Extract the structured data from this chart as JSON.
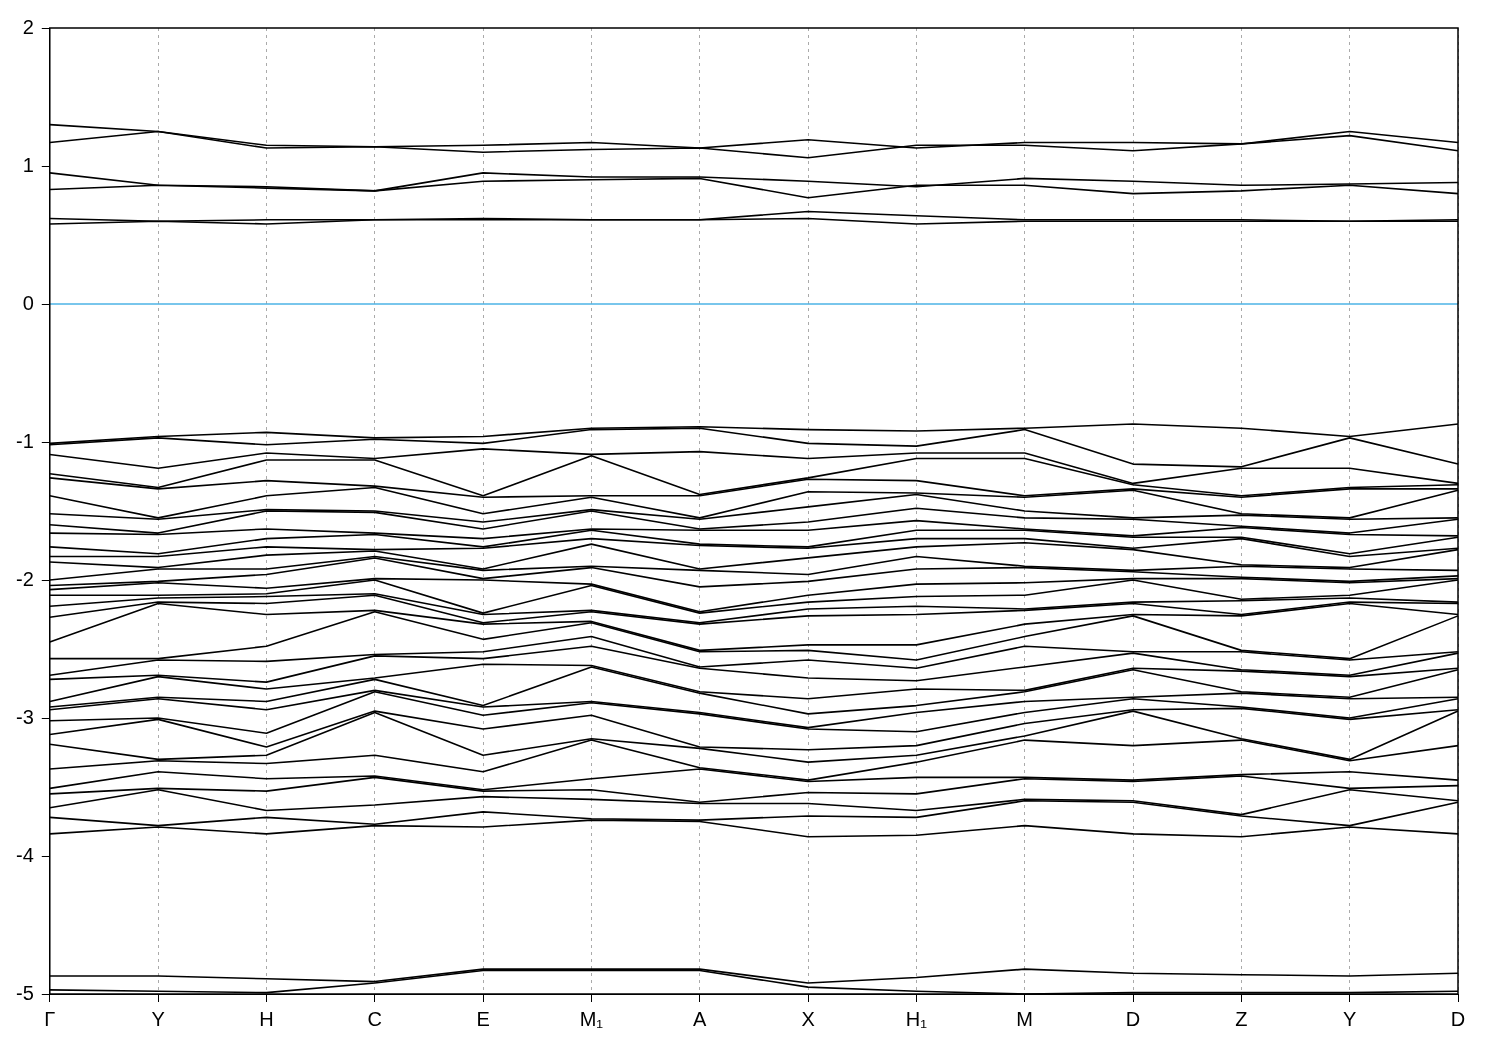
{
  "chart_data": {
    "type": "line",
    "categories": [
      "Γ",
      "Y",
      "H",
      "C",
      "E",
      "M₁",
      "A",
      "X",
      "H₁",
      "M",
      "D",
      "Z",
      "Y",
      "D"
    ],
    "ylim": [
      -5,
      2
    ],
    "yticks": [
      -5,
      -4,
      -3,
      -2,
      -1,
      0,
      1,
      2
    ],
    "grid": "x",
    "marker": "none",
    "line_style": "solid",
    "ref_lines": [
      {
        "axis": "y",
        "value": 0,
        "color": "#4db3e6"
      }
    ],
    "series": [
      {
        "color": "#000000",
        "values": [
          1.3,
          1.25,
          1.15,
          1.14,
          1.15,
          1.17,
          1.13,
          1.19,
          1.13,
          1.17,
          1.17,
          1.16,
          1.25,
          1.17
        ]
      },
      {
        "color": "#000000",
        "values": [
          1.17,
          1.25,
          1.13,
          1.14,
          1.1,
          1.12,
          1.13,
          1.06,
          1.15,
          1.15,
          1.11,
          1.16,
          1.22,
          1.11
        ]
      },
      {
        "color": "#000000",
        "values": [
          0.95,
          0.86,
          0.85,
          0.82,
          0.95,
          0.92,
          0.92,
          0.89,
          0.85,
          0.91,
          0.89,
          0.86,
          0.87,
          0.88
        ]
      },
      {
        "color": "#000000",
        "values": [
          0.83,
          0.86,
          0.84,
          0.82,
          0.89,
          0.9,
          0.91,
          0.77,
          0.86,
          0.86,
          0.8,
          0.82,
          0.86,
          0.8
        ]
      },
      {
        "color": "#000000",
        "values": [
          0.62,
          0.6,
          0.61,
          0.61,
          0.62,
          0.61,
          0.61,
          0.67,
          0.64,
          0.61,
          0.61,
          0.61,
          0.6,
          0.61
        ]
      },
      {
        "color": "#000000",
        "values": [
          0.58,
          0.6,
          0.58,
          0.61,
          0.61,
          0.61,
          0.61,
          0.62,
          0.58,
          0.6,
          0.6,
          0.6,
          0.6,
          0.6
        ]
      },
      {
        "color": "#000000",
        "values": [
          -1.01,
          -0.96,
          -0.93,
          -0.97,
          -0.96,
          -0.9,
          -0.89,
          -0.91,
          -0.92,
          -0.9,
          -0.87,
          -0.9,
          -0.96,
          -0.87
        ]
      },
      {
        "color": "#000000",
        "values": [
          -1.02,
          -0.97,
          -1.02,
          -0.98,
          -1.01,
          -0.91,
          -0.9,
          -1.01,
          -1.03,
          -0.91,
          -1.16,
          -1.18,
          -0.97,
          -1.16
        ]
      },
      {
        "color": "#000000",
        "values": [
          -1.09,
          -1.19,
          -1.08,
          -1.12,
          -1.05,
          -1.09,
          -1.07,
          -1.12,
          -1.08,
          -1.08,
          -1.3,
          -1.19,
          -1.19,
          -1.3
        ]
      },
      {
        "color": "#000000",
        "values": [
          -1.23,
          -1.33,
          -1.13,
          -1.13,
          -1.39,
          -1.1,
          -1.38,
          -1.26,
          -1.12,
          -1.12,
          -1.31,
          -1.39,
          -1.33,
          -1.31
        ]
      },
      {
        "color": "#000000",
        "values": [
          -1.26,
          -1.34,
          -1.28,
          -1.32,
          -1.4,
          -1.39,
          -1.39,
          -1.27,
          -1.28,
          -1.39,
          -1.34,
          -1.4,
          -1.34,
          -1.34
        ]
      },
      {
        "color": "#000000",
        "values": [
          -1.39,
          -1.55,
          -1.39,
          -1.33,
          -1.52,
          -1.4,
          -1.55,
          -1.36,
          -1.37,
          -1.4,
          -1.35,
          -1.52,
          -1.55,
          -1.35
        ]
      },
      {
        "color": "#000000",
        "values": [
          -1.52,
          -1.56,
          -1.49,
          -1.5,
          -1.58,
          -1.49,
          -1.56,
          -1.47,
          -1.38,
          -1.5,
          -1.55,
          -1.53,
          -1.56,
          -1.55
        ]
      },
      {
        "color": "#000000",
        "values": [
          -1.6,
          -1.66,
          -1.5,
          -1.51,
          -1.63,
          -1.5,
          -1.63,
          -1.58,
          -1.48,
          -1.55,
          -1.56,
          -1.61,
          -1.66,
          -1.56
        ]
      },
      {
        "color": "#000000",
        "values": [
          -1.66,
          -1.67,
          -1.63,
          -1.66,
          -1.7,
          -1.63,
          -1.64,
          -1.64,
          -1.57,
          -1.63,
          -1.68,
          -1.62,
          -1.67,
          -1.68
        ]
      },
      {
        "color": "#000000",
        "values": [
          -1.76,
          -1.81,
          -1.7,
          -1.67,
          -1.76,
          -1.64,
          -1.74,
          -1.76,
          -1.64,
          -1.64,
          -1.69,
          -1.69,
          -1.81,
          -1.69
        ]
      },
      {
        "color": "#000000",
        "values": [
          -1.83,
          -1.83,
          -1.76,
          -1.78,
          -1.77,
          -1.7,
          -1.75,
          -1.77,
          -1.7,
          -1.7,
          -1.77,
          -1.7,
          -1.83,
          -1.77
        ]
      },
      {
        "color": "#000000",
        "values": [
          -1.87,
          -1.91,
          -1.82,
          -1.79,
          -1.92,
          -1.74,
          -1.92,
          -1.84,
          -1.76,
          -1.73,
          -1.78,
          -1.89,
          -1.91,
          -1.78
        ]
      },
      {
        "color": "#000000",
        "values": [
          -2.0,
          -1.92,
          -1.92,
          -1.83,
          -1.93,
          -1.9,
          -1.93,
          -1.96,
          -1.83,
          -1.9,
          -1.93,
          -1.9,
          -1.92,
          -1.93
        ]
      },
      {
        "color": "#000000",
        "values": [
          -2.04,
          -2.01,
          -1.96,
          -1.84,
          -1.99,
          -1.91,
          -2.05,
          -2.01,
          -1.92,
          -1.91,
          -1.94,
          -1.98,
          -2.01,
          -1.97
        ]
      },
      {
        "color": "#000000",
        "values": [
          -2.07,
          -2.02,
          -2.06,
          -1.99,
          -2.0,
          -2.03,
          -2.23,
          -2.11,
          -2.03,
          -2.02,
          -1.99,
          -1.99,
          -2.02,
          -1.99
        ]
      },
      {
        "color": "#000000",
        "values": [
          -2.11,
          -2.11,
          -2.1,
          -2.0,
          -2.24,
          -2.04,
          -2.24,
          -2.16,
          -2.12,
          -2.11,
          -2.0,
          -2.14,
          -2.11,
          -2.0
        ]
      },
      {
        "color": "#000000",
        "values": [
          -2.19,
          -2.13,
          -2.12,
          -2.1,
          -2.25,
          -2.22,
          -2.31,
          -2.21,
          -2.19,
          -2.21,
          -2.16,
          -2.15,
          -2.13,
          -2.16
        ]
      },
      {
        "color": "#000000",
        "values": [
          -2.27,
          -2.16,
          -2.17,
          -2.11,
          -2.31,
          -2.23,
          -2.32,
          -2.26,
          -2.25,
          -2.22,
          -2.17,
          -2.25,
          -2.16,
          -2.17
        ]
      },
      {
        "color": "#000000",
        "values": [
          -2.45,
          -2.17,
          -2.25,
          -2.22,
          -2.32,
          -2.3,
          -2.51,
          -2.47,
          -2.47,
          -2.32,
          -2.25,
          -2.26,
          -2.17,
          -2.25
        ]
      },
      {
        "color": "#000000",
        "values": [
          -2.57,
          -2.57,
          -2.48,
          -2.23,
          -2.43,
          -2.31,
          -2.52,
          -2.51,
          -2.58,
          -2.41,
          -2.26,
          -2.51,
          -2.57,
          -2.26
        ]
      },
      {
        "color": "#000000",
        "values": [
          -2.69,
          -2.58,
          -2.59,
          -2.54,
          -2.52,
          -2.41,
          -2.63,
          -2.58,
          -2.64,
          -2.48,
          -2.52,
          -2.52,
          -2.58,
          -2.52
        ]
      },
      {
        "color": "#000000",
        "values": [
          -2.72,
          -2.69,
          -2.74,
          -2.55,
          -2.57,
          -2.48,
          -2.64,
          -2.71,
          -2.73,
          -2.63,
          -2.53,
          -2.65,
          -2.69,
          -2.53
        ]
      },
      {
        "color": "#000000",
        "values": [
          -2.88,
          -2.7,
          -2.79,
          -2.71,
          -2.61,
          -2.62,
          -2.81,
          -2.86,
          -2.79,
          -2.8,
          -2.64,
          -2.66,
          -2.7,
          -2.64
        ]
      },
      {
        "color": "#000000",
        "values": [
          -2.92,
          -2.85,
          -2.88,
          -2.72,
          -2.91,
          -2.63,
          -2.82,
          -2.97,
          -2.91,
          -2.81,
          -2.65,
          -2.81,
          -2.85,
          -2.65
        ]
      },
      {
        "color": "#000000",
        "values": [
          -2.94,
          -2.86,
          -2.94,
          -2.8,
          -2.92,
          -2.88,
          -2.96,
          -3.07,
          -2.96,
          -2.88,
          -2.85,
          -2.82,
          -2.86,
          -2.85
        ]
      },
      {
        "color": "#000000",
        "values": [
          -3.02,
          -3.0,
          -3.11,
          -2.81,
          -2.98,
          -2.89,
          -2.97,
          -3.08,
          -3.1,
          -2.96,
          -2.86,
          -2.92,
          -3.0,
          -2.86
        ]
      },
      {
        "color": "#000000",
        "values": [
          -3.12,
          -3.01,
          -3.21,
          -2.95,
          -3.08,
          -2.98,
          -3.21,
          -3.23,
          -3.2,
          -3.04,
          -2.94,
          -2.93,
          -3.01,
          -2.94
        ]
      },
      {
        "color": "#000000",
        "values": [
          -3.19,
          -3.3,
          -3.27,
          -2.96,
          -3.27,
          -3.15,
          -3.22,
          -3.32,
          -3.27,
          -3.13,
          -2.95,
          -3.15,
          -3.3,
          -2.95
        ]
      },
      {
        "color": "#000000",
        "values": [
          -3.37,
          -3.31,
          -3.33,
          -3.27,
          -3.39,
          -3.16,
          -3.36,
          -3.45,
          -3.32,
          -3.16,
          -3.2,
          -3.16,
          -3.31,
          -3.2
        ]
      },
      {
        "color": "#000000",
        "values": [
          -3.51,
          -3.39,
          -3.44,
          -3.42,
          -3.52,
          -3.44,
          -3.37,
          -3.46,
          -3.43,
          -3.43,
          -3.45,
          -3.41,
          -3.39,
          -3.45
        ]
      },
      {
        "color": "#000000",
        "values": [
          -3.55,
          -3.51,
          -3.53,
          -3.43,
          -3.53,
          -3.52,
          -3.61,
          -3.54,
          -3.55,
          -3.44,
          -3.46,
          -3.42,
          -3.51,
          -3.49
        ]
      },
      {
        "color": "#000000",
        "values": [
          -3.65,
          -3.52,
          -3.67,
          -3.63,
          -3.57,
          -3.59,
          -3.62,
          -3.62,
          -3.67,
          -3.59,
          -3.6,
          -3.7,
          -3.52,
          -3.6
        ]
      },
      {
        "color": "#000000",
        "values": [
          -3.72,
          -3.78,
          -3.72,
          -3.77,
          -3.68,
          -3.73,
          -3.74,
          -3.71,
          -3.72,
          -3.6,
          -3.61,
          -3.71,
          -3.78,
          -3.61
        ]
      },
      {
        "color": "#000000",
        "values": [
          -3.84,
          -3.79,
          -3.84,
          -3.78,
          -3.79,
          -3.74,
          -3.75,
          -3.86,
          -3.85,
          -3.78,
          -3.84,
          -3.86,
          -3.79,
          -3.84
        ]
      },
      {
        "color": "#000000",
        "values": [
          -4.87,
          -4.87,
          -4.89,
          -4.91,
          -4.82,
          -4.82,
          -4.82,
          -4.92,
          -4.88,
          -4.82,
          -4.85,
          -4.86,
          -4.87,
          -4.85
        ]
      },
      {
        "color": "#000000",
        "values": [
          -4.97,
          -4.98,
          -4.99,
          -4.92,
          -4.83,
          -4.83,
          -4.83,
          -4.95,
          -4.98,
          -5.0,
          -4.99,
          -4.99,
          -4.99,
          -4.98
        ]
      }
    ]
  }
}
